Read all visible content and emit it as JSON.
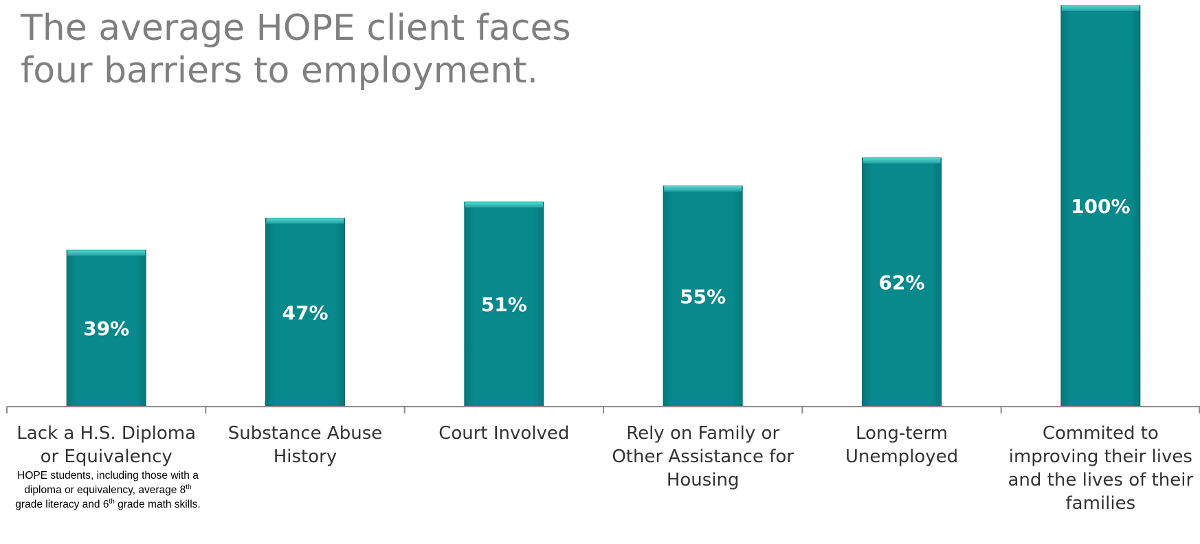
{
  "title": "The average HOPE client faces four barriers to employment.",
  "colors": {
    "bar": "#07888A",
    "bar_top": "#35BDBE",
    "bar_edge": "#05686A",
    "title": "#7F7F7F",
    "axis": "#8C8C8C"
  },
  "chart_data": {
    "type": "bar",
    "categories": [
      "Lack a H.S. Diploma or Equivalency",
      "Substance Abuse History",
      "Court Involved",
      "Rely on Family or Other Assistance for Housing",
      "Long-term Unemployed",
      "Commited to improving their lives and the lives of their families"
    ],
    "values": [
      39,
      47,
      51,
      55,
      62,
      100
    ],
    "data_labels": [
      "39%",
      "47%",
      "51%",
      "55%",
      "62%",
      "100%"
    ],
    "ylim": [
      0,
      100
    ],
    "grid": false,
    "legend": "none"
  },
  "note": {
    "part1": "HOPE students, including those with a diploma or equivalency, average 8",
    "sup1": "th",
    "part2": " grade literacy and 6",
    "sup2": "th",
    "part3": " grade math skills."
  }
}
